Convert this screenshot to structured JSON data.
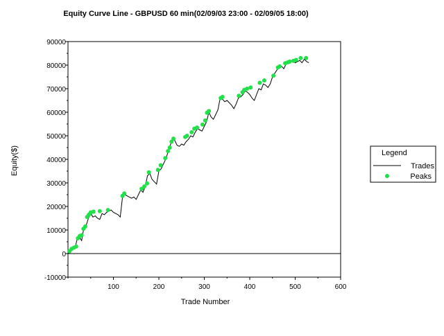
{
  "chart_data": {
    "type": "line",
    "title": "Equity Curve Line - GBPUSD 60 min(02/09/03 23:00 - 02/09/05 18:00)",
    "xlabel": "Trade Number",
    "ylabel": "Equity($)",
    "xlim": [
      0,
      600
    ],
    "ylim": [
      -10000,
      90000
    ],
    "xticks": [
      "100",
      "200",
      "300",
      "400",
      "500",
      "600"
    ],
    "yticks": [
      "-10000",
      "0",
      "10000",
      "20000",
      "30000",
      "40000",
      "50000",
      "60000",
      "70000",
      "80000",
      "90000"
    ],
    "grid": true,
    "legend": {
      "title": "Legend",
      "placement": "right",
      "entries": [
        "Trades",
        "Peaks"
      ]
    },
    "colors": {
      "trades": "#000000",
      "peaks": "#22e04a",
      "grid": "#000000",
      "background": "#ffffff"
    },
    "series": [
      {
        "name": "Trades",
        "type": "line",
        "x": [
          0,
          5,
          10,
          15,
          20,
          25,
          30,
          35,
          40,
          45,
          50,
          55,
          60,
          65,
          70,
          75,
          80,
          85,
          90,
          95,
          100,
          105,
          110,
          115,
          120,
          125,
          130,
          135,
          140,
          145,
          150,
          155,
          160,
          165,
          170,
          175,
          180,
          185,
          190,
          195,
          200,
          205,
          210,
          215,
          220,
          225,
          230,
          235,
          240,
          245,
          250,
          255,
          260,
          265,
          270,
          275,
          280,
          285,
          290,
          295,
          300,
          305,
          310,
          315,
          320,
          325,
          330,
          335,
          340,
          345,
          350,
          355,
          360,
          365,
          370,
          375,
          380,
          385,
          390,
          395,
          400,
          405,
          410,
          415,
          420,
          425,
          430,
          435,
          440,
          445,
          450,
          455,
          460,
          465,
          470,
          475,
          480,
          485,
          490,
          495,
          500,
          505,
          510,
          515,
          520,
          525,
          530
        ],
        "y": [
          0,
          1500,
          2500,
          2000,
          6000,
          7000,
          5500,
          11000,
          12000,
          15000,
          17000,
          15500,
          16000,
          15000,
          14500,
          17000,
          16500,
          17500,
          18000,
          18500,
          17500,
          17000,
          16500,
          15500,
          24000,
          25000,
          24500,
          24000,
          23500,
          24000,
          23000,
          25000,
          27000,
          26000,
          28500,
          33000,
          34000,
          31500,
          30500,
          29500,
          35000,
          36000,
          38000,
          40000,
          43000,
          46000,
          48500,
          48000,
          46000,
          45500,
          46500,
          46000,
          47500,
          48500,
          50000,
          49500,
          51500,
          53000,
          52500,
          52000,
          54000,
          56000,
          60000,
          58000,
          57000,
          59000,
          61000,
          66000,
          65500,
          64500,
          65000,
          64000,
          63000,
          61500,
          63500,
          66000,
          66500,
          67500,
          69000,
          68500,
          67500,
          66000,
          65000,
          67500,
          70000,
          69500,
          72000,
          71500,
          70500,
          72000,
          75000,
          76500,
          78000,
          79000,
          79500,
          78500,
          80500,
          81000,
          81500,
          82000,
          81000,
          81500,
          82000,
          81000,
          82500,
          81500,
          81000
        ]
      },
      {
        "name": "Peaks",
        "type": "scatter",
        "x": [
          3,
          8,
          13,
          18,
          22,
          26,
          30,
          34,
          38,
          42,
          46,
          50,
          56,
          70,
          88,
          120,
          124,
          162,
          168,
          174,
          178,
          198,
          204,
          214,
          220,
          224,
          228,
          232,
          258,
          262,
          272,
          278,
          284,
          296,
          302,
          306,
          310,
          336,
          340,
          376,
          384,
          388,
          394,
          402,
          422,
          432,
          452,
          462,
          466,
          478,
          484,
          488,
          496,
          502,
          512,
          524
        ],
        "y": [
          1000,
          2000,
          2500,
          3000,
          6500,
          7500,
          7800,
          10500,
          11500,
          15500,
          16500,
          17500,
          17800,
          18000,
          18500,
          24500,
          25500,
          27500,
          28500,
          29800,
          34500,
          35500,
          37500,
          40500,
          43500,
          45000,
          47500,
          48800,
          49500,
          50000,
          51500,
          53000,
          53500,
          54800,
          56500,
          59800,
          60500,
          66000,
          66500,
          67000,
          68500,
          69500,
          70000,
          70500,
          72500,
          73500,
          75500,
          79000,
          79500,
          80800,
          81200,
          81500,
          81800,
          82200,
          83000,
          83000
        ]
      }
    ]
  }
}
